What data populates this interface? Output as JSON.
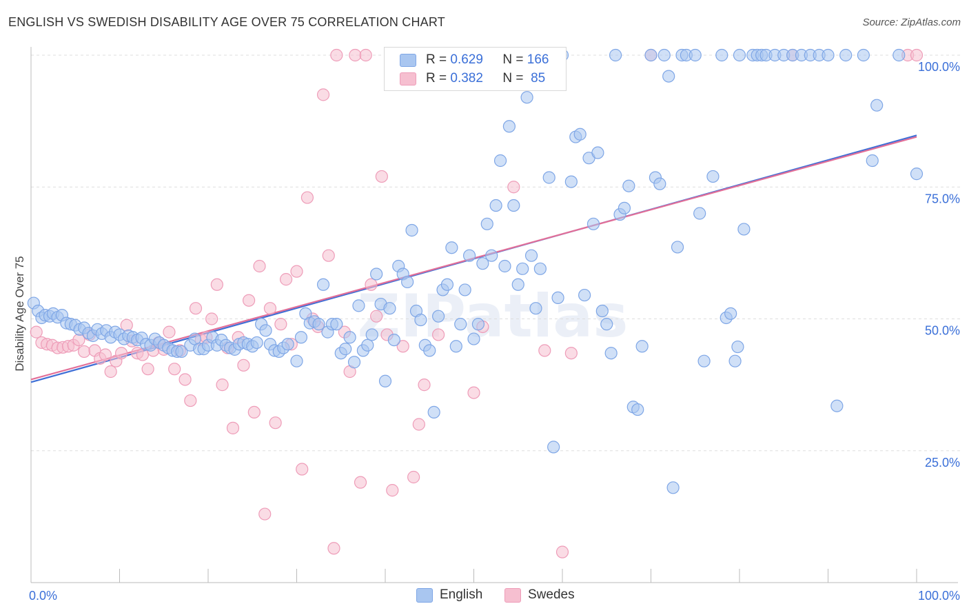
{
  "title": "ENGLISH VS SWEDISH DISABILITY AGE OVER 75 CORRELATION CHART",
  "source": "Source: ZipAtlas.com",
  "watermark": "ZIPatlas",
  "legend": {
    "r_label": "R =",
    "n_label": "N =",
    "rows": [
      {
        "r": "0.629",
        "n": "166"
      },
      {
        "r": "0.382",
        "n": "85"
      }
    ]
  },
  "colors": {
    "english_fill": "#a9c6f0",
    "english_stroke": "#7ea6e6",
    "english_line": "#3f6fd6",
    "swedes_fill": "#f6bfd0",
    "swedes_stroke": "#ee9cb8",
    "swedes_line": "#e26f98",
    "tick_label": "#3a6fd8",
    "grid": "#dddddd"
  },
  "chart_data": {
    "type": "scatter",
    "xlabel": "",
    "ylabel": "Disability Age Over 75",
    "xlim": [
      0,
      100
    ],
    "ylim": [
      0,
      100
    ],
    "x_tick_labels": [
      "0.0%",
      "100.0%"
    ],
    "y_ticks": [
      25,
      50,
      75,
      100
    ],
    "y_tick_labels": [
      "25.0%",
      "50.0%",
      "75.0%",
      "100.0%"
    ],
    "grid": "horizontal dashed",
    "legend_position": "bottom-center",
    "series": [
      {
        "name": "English",
        "r": 0.629,
        "n": 166,
        "trend": [
          [
            0,
            38.0
          ],
          [
            100,
            84.8
          ]
        ],
        "points": [
          [
            0.3,
            53.0
          ],
          [
            0.8,
            51.5
          ],
          [
            1.2,
            50.2
          ],
          [
            1.6,
            50.7
          ],
          [
            2.1,
            50.5
          ],
          [
            2.5,
            51.0
          ],
          [
            3.0,
            50.3
          ],
          [
            3.5,
            50.7
          ],
          [
            4.0,
            49.2
          ],
          [
            4.5,
            49.0
          ],
          [
            5.0,
            48.8
          ],
          [
            5.5,
            48.0
          ],
          [
            6.0,
            48.3
          ],
          [
            6.5,
            47.3
          ],
          [
            7.0,
            46.8
          ],
          [
            7.5,
            48.0
          ],
          [
            8.0,
            47.2
          ],
          [
            8.5,
            47.8
          ],
          [
            9.0,
            46.5
          ],
          [
            9.5,
            47.5
          ],
          [
            10.0,
            47.0
          ],
          [
            10.5,
            46.2
          ],
          [
            11.0,
            46.8
          ],
          [
            11.5,
            46.5
          ],
          [
            12.0,
            46.0
          ],
          [
            12.5,
            46.4
          ],
          [
            13.0,
            45.2
          ],
          [
            13.5,
            45.0
          ],
          [
            14.0,
            46.2
          ],
          [
            14.5,
            45.5
          ],
          [
            15.0,
            45.0
          ],
          [
            15.5,
            44.5
          ],
          [
            16.0,
            44.0
          ],
          [
            16.5,
            43.8
          ],
          [
            17.0,
            43.8
          ],
          [
            18.0,
            45.0
          ],
          [
            18.5,
            46.2
          ],
          [
            19.0,
            44.3
          ],
          [
            19.5,
            44.3
          ],
          [
            20.0,
            45.0
          ],
          [
            20.5,
            46.5
          ],
          [
            21.0,
            45.0
          ],
          [
            21.5,
            46.0
          ],
          [
            22.0,
            45.0
          ],
          [
            22.5,
            44.5
          ],
          [
            23.0,
            44.2
          ],
          [
            23.5,
            45.2
          ],
          [
            24.0,
            45.5
          ],
          [
            24.5,
            45.2
          ],
          [
            25.0,
            44.8
          ],
          [
            25.5,
            45.5
          ],
          [
            26.0,
            49.0
          ],
          [
            26.5,
            47.8
          ],
          [
            27.0,
            45.2
          ],
          [
            27.5,
            44.0
          ],
          [
            28.0,
            43.8
          ],
          [
            28.5,
            44.5
          ],
          [
            29.0,
            45.2
          ],
          [
            30.0,
            42.0
          ],
          [
            30.5,
            46.5
          ],
          [
            31.0,
            51.0
          ],
          [
            31.5,
            49.2
          ],
          [
            32.0,
            49.5
          ],
          [
            32.5,
            49.0
          ],
          [
            33.0,
            56.5
          ],
          [
            33.5,
            47.5
          ],
          [
            34.0,
            49.0
          ],
          [
            34.5,
            49.0
          ],
          [
            35.0,
            43.5
          ],
          [
            35.5,
            44.3
          ],
          [
            36.0,
            46.5
          ],
          [
            36.5,
            41.8
          ],
          [
            37.0,
            52.5
          ],
          [
            37.5,
            44.0
          ],
          [
            38.0,
            45.0
          ],
          [
            38.5,
            47.0
          ],
          [
            39.0,
            58.5
          ],
          [
            39.5,
            52.8
          ],
          [
            40.0,
            38.2
          ],
          [
            40.5,
            52.0
          ],
          [
            41.0,
            46.0
          ],
          [
            41.5,
            60.0
          ],
          [
            42.0,
            58.5
          ],
          [
            42.5,
            57.0
          ],
          [
            43.0,
            66.8
          ],
          [
            43.5,
            51.5
          ],
          [
            44.0,
            49.8
          ],
          [
            44.5,
            45.0
          ],
          [
            45.0,
            44.0
          ],
          [
            45.5,
            32.3
          ],
          [
            46.0,
            50.5
          ],
          [
            46.5,
            55.5
          ],
          [
            47.0,
            56.5
          ],
          [
            47.5,
            63.5
          ],
          [
            48.0,
            44.8
          ],
          [
            48.5,
            49.0
          ],
          [
            49.0,
            55.5
          ],
          [
            49.5,
            62.0
          ],
          [
            50.0,
            46.2
          ],
          [
            50.5,
            49.0
          ],
          [
            51.0,
            60.5
          ],
          [
            51.5,
            68.0
          ],
          [
            52.0,
            62.0
          ],
          [
            52.5,
            71.5
          ],
          [
            53.0,
            80.0
          ],
          [
            53.5,
            60.0
          ],
          [
            54.0,
            86.5
          ],
          [
            54.5,
            71.5
          ],
          [
            55.0,
            56.5
          ],
          [
            55.5,
            59.5
          ],
          [
            56.0,
            92.0
          ],
          [
            56.5,
            62.0
          ],
          [
            57.0,
            52.0
          ],
          [
            57.5,
            59.5
          ],
          [
            58.0,
            100.0
          ],
          [
            58.5,
            76.8
          ],
          [
            59.0,
            25.7
          ],
          [
            59.5,
            54.0
          ],
          [
            60.0,
            100.0
          ],
          [
            61.0,
            76.0
          ],
          [
            61.5,
            84.5
          ],
          [
            62.0,
            85.0
          ],
          [
            62.5,
            54.5
          ],
          [
            63.0,
            80.5
          ],
          [
            63.5,
            68.0
          ],
          [
            64.0,
            81.5
          ],
          [
            64.5,
            51.5
          ],
          [
            65.0,
            49.0
          ],
          [
            65.5,
            43.5
          ],
          [
            66.0,
            100.0
          ],
          [
            66.5,
            69.8
          ],
          [
            67.0,
            71.0
          ],
          [
            67.5,
            75.2
          ],
          [
            68.0,
            33.3
          ],
          [
            68.5,
            32.8
          ],
          [
            69.0,
            44.8
          ],
          [
            70.0,
            100.0
          ],
          [
            70.5,
            76.8
          ],
          [
            71.0,
            75.6
          ],
          [
            71.5,
            100.0
          ],
          [
            72.0,
            96.0
          ],
          [
            72.5,
            18.0
          ],
          [
            73.0,
            63.6
          ],
          [
            73.5,
            100.0
          ],
          [
            74.0,
            100.0
          ],
          [
            75.0,
            100.0
          ],
          [
            75.5,
            70.0
          ],
          [
            76.0,
            42.0
          ],
          [
            77.0,
            77.0
          ],
          [
            78.0,
            100.0
          ],
          [
            78.5,
            50.2
          ],
          [
            79.0,
            51.0
          ],
          [
            79.5,
            42.0
          ],
          [
            79.8,
            44.7
          ],
          [
            80.0,
            100.0
          ],
          [
            80.5,
            67.0
          ],
          [
            81.5,
            100.0
          ],
          [
            82.0,
            100.0
          ],
          [
            82.5,
            100.0
          ],
          [
            83.0,
            100.0
          ],
          [
            84.0,
            100.0
          ],
          [
            85.0,
            100.0
          ],
          [
            86.0,
            100.0
          ],
          [
            87.0,
            100.0
          ],
          [
            88.0,
            100.0
          ],
          [
            89.0,
            100.0
          ],
          [
            90.0,
            100.0
          ],
          [
            91.0,
            33.5
          ],
          [
            92.0,
            100.0
          ],
          [
            94.0,
            100.0
          ],
          [
            95.0,
            80.0
          ],
          [
            95.5,
            90.5
          ],
          [
            98.0,
            100.0
          ],
          [
            100.0,
            77.5
          ]
        ]
      },
      {
        "name": "Swedes",
        "r": 0.382,
        "n": 85,
        "trend": [
          [
            0,
            38.5
          ],
          [
            100,
            84.5
          ]
        ],
        "points": [
          [
            0.6,
            47.5
          ],
          [
            1.2,
            45.5
          ],
          [
            1.8,
            45.2
          ],
          [
            2.4,
            45.0
          ],
          [
            3.0,
            44.5
          ],
          [
            3.6,
            44.6
          ],
          [
            4.2,
            44.8
          ],
          [
            4.8,
            45.0
          ],
          [
            5.4,
            46.0
          ],
          [
            6.0,
            43.8
          ],
          [
            6.6,
            47.0
          ],
          [
            7.2,
            44.0
          ],
          [
            7.8,
            42.5
          ],
          [
            8.4,
            43.2
          ],
          [
            9.0,
            40.0
          ],
          [
            9.6,
            42.0
          ],
          [
            10.2,
            43.5
          ],
          [
            10.8,
            48.8
          ],
          [
            11.4,
            45.8
          ],
          [
            12.0,
            43.5
          ],
          [
            12.6,
            43.2
          ],
          [
            13.2,
            40.5
          ],
          [
            13.8,
            44.0
          ],
          [
            14.4,
            45.5
          ],
          [
            15.0,
            44.2
          ],
          [
            15.6,
            47.5
          ],
          [
            16.2,
            40.5
          ],
          [
            16.8,
            44.0
          ],
          [
            17.4,
            38.5
          ],
          [
            18.0,
            34.5
          ],
          [
            18.6,
            52.0
          ],
          [
            19.2,
            46.0
          ],
          [
            19.8,
            46.5
          ],
          [
            20.4,
            50.0
          ],
          [
            21.0,
            56.5
          ],
          [
            21.6,
            37.5
          ],
          [
            22.2,
            44.5
          ],
          [
            22.8,
            29.3
          ],
          [
            23.4,
            46.5
          ],
          [
            24.0,
            41.2
          ],
          [
            24.6,
            53.5
          ],
          [
            25.2,
            32.3
          ],
          [
            25.8,
            60.0
          ],
          [
            26.4,
            13.0
          ],
          [
            27.0,
            52.0
          ],
          [
            27.6,
            30.3
          ],
          [
            28.2,
            49.0
          ],
          [
            28.8,
            57.5
          ],
          [
            29.4,
            45.2
          ],
          [
            30.0,
            59.0
          ],
          [
            30.6,
            21.5
          ],
          [
            31.2,
            73.0
          ],
          [
            31.8,
            50.0
          ],
          [
            32.4,
            48.5
          ],
          [
            33.0,
            92.5
          ],
          [
            33.6,
            62.0
          ],
          [
            34.2,
            6.5
          ],
          [
            34.5,
            100.0
          ],
          [
            35.4,
            47.5
          ],
          [
            36.0,
            40.0
          ],
          [
            36.6,
            100.0
          ],
          [
            37.2,
            19.0
          ],
          [
            37.8,
            100.0
          ],
          [
            38.4,
            56.5
          ],
          [
            39.0,
            50.5
          ],
          [
            39.6,
            77.0
          ],
          [
            40.2,
            47.0
          ],
          [
            40.8,
            17.5
          ],
          [
            42.0,
            44.8
          ],
          [
            43.2,
            20.0
          ],
          [
            43.8,
            30.0
          ],
          [
            44.4,
            37.5
          ],
          [
            46.0,
            47.0
          ],
          [
            50.0,
            36.0
          ],
          [
            51.0,
            48.5
          ],
          [
            54.0,
            100.0
          ],
          [
            54.5,
            75.0
          ],
          [
            56.0,
            100.0
          ],
          [
            58.0,
            44.0
          ],
          [
            60.0,
            5.8
          ],
          [
            61.0,
            43.5
          ],
          [
            70.0,
            100.0
          ],
          [
            86.0,
            100.0
          ],
          [
            99.0,
            100.0
          ],
          [
            100.0,
            100.0
          ]
        ]
      }
    ]
  }
}
